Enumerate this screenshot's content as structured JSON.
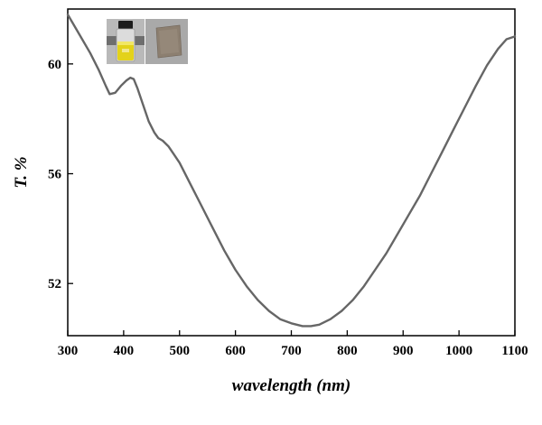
{
  "chart_data": {
    "type": "line",
    "title": "",
    "xlabel": "wavelength (nm)",
    "ylabel": "T. %",
    "xlim": [
      300,
      1100
    ],
    "ylim": [
      50.1,
      62.0
    ],
    "x_ticks": [
      300,
      400,
      500,
      600,
      700,
      800,
      900,
      1000,
      1100
    ],
    "y_ticks": [
      52,
      56,
      60
    ],
    "x_tick_labels": [
      "300",
      "400",
      "500",
      "600",
      "700",
      "800",
      "900",
      "1000",
      "1100"
    ],
    "y_tick_labels": [
      "52",
      "56",
      "60"
    ],
    "grid": false,
    "legend": "none",
    "line_color": "#666666",
    "series": [
      {
        "x": [
          300,
          320,
          340,
          355,
          368,
          375,
          385,
          395,
          405,
          412,
          418,
          425,
          435,
          445,
          455,
          462,
          470,
          480,
          490,
          500,
          520,
          540,
          560,
          580,
          600,
          620,
          640,
          660,
          680,
          700,
          720,
          735,
          750,
          770,
          790,
          810,
          830,
          850,
          870,
          890,
          910,
          930,
          950,
          970,
          990,
          1010,
          1030,
          1050,
          1070,
          1085,
          1100
        ],
        "y": [
          61.8,
          61.1,
          60.4,
          59.8,
          59.2,
          58.9,
          58.95,
          59.2,
          59.4,
          59.5,
          59.45,
          59.1,
          58.5,
          57.9,
          57.5,
          57.3,
          57.2,
          57.0,
          56.7,
          56.4,
          55.6,
          54.8,
          54.0,
          53.2,
          52.5,
          51.9,
          51.4,
          51.0,
          50.7,
          50.55,
          50.45,
          50.45,
          50.5,
          50.7,
          51.0,
          51.4,
          51.9,
          52.5,
          53.1,
          53.8,
          54.5,
          55.2,
          56.0,
          56.8,
          57.6,
          58.4,
          59.2,
          59.95,
          60.55,
          60.9,
          61.0
        ]
      }
    ]
  },
  "inset": {
    "vial_label": "",
    "film_label": ""
  }
}
